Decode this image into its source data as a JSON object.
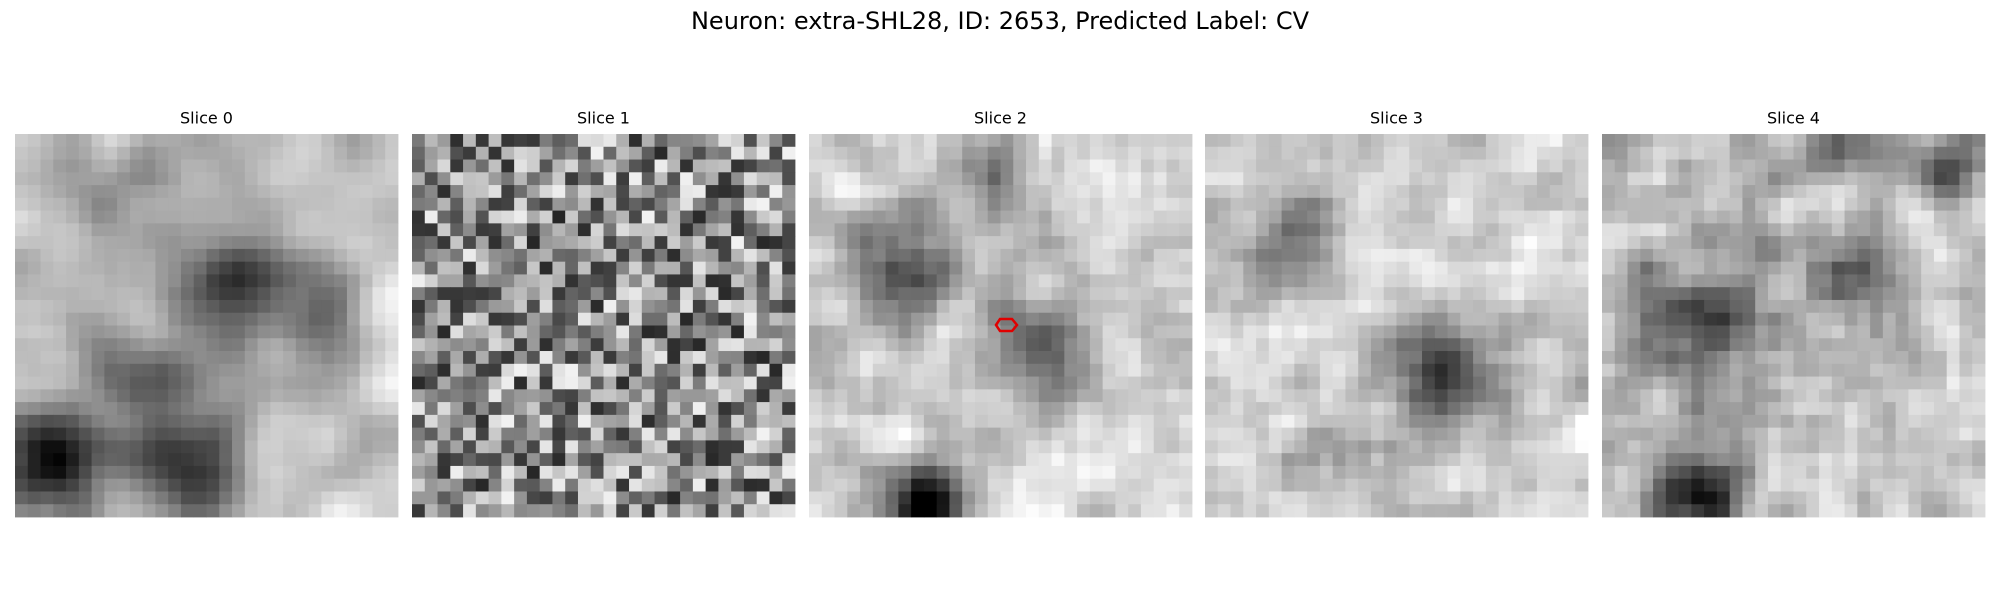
{
  "title": "Neuron: extra-SHL28, ID: 2653, Predicted Label: CV",
  "panels": [
    {
      "title": "Slice 0"
    },
    {
      "title": "Slice 1"
    },
    {
      "title": "Slice 2"
    },
    {
      "title": "Slice 3"
    },
    {
      "title": "Slice 4"
    }
  ]
}
